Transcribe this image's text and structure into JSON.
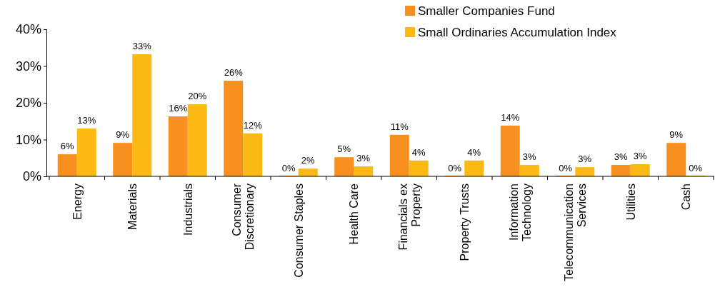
{
  "chart_data": {
    "type": "bar",
    "categories": [
      "Energy",
      "Materials",
      "Industrials",
      "Consumer Discretionary",
      "Consumer Staples",
      "Health Care",
      "Financials ex Property",
      "Property Trusts",
      "Information Technology",
      "Telecommunication Services",
      "Utilities",
      "Cash"
    ],
    "series": [
      {
        "name": "Smaller Companies Fund",
        "color": "#f7901e",
        "values": [
          6.0,
          9.1,
          16.3,
          26.0,
          0,
          5.2,
          11.3,
          0,
          13.8,
          0,
          3.1,
          9.1
        ],
        "value_labels": [
          "6%",
          "9%",
          "16%",
          "26%",
          "0%",
          "5%",
          "11%",
          "0%",
          "14%",
          "0%",
          "3%",
          "9%"
        ]
      },
      {
        "name": "Small Ordinaries Accumulation Index",
        "color": "#fdb913",
        "values": [
          13.0,
          33.2,
          19.6,
          11.7,
          2.1,
          2.7,
          4.3,
          4.3,
          3.1,
          2.5,
          3.3,
          0
        ],
        "value_labels": [
          "13%",
          "33%",
          "20%",
          "12%",
          "2%",
          "3%",
          "4%",
          "4%",
          "3%",
          "3%",
          "3%",
          "0%"
        ]
      }
    ],
    "ylim": [
      0,
      40
    ],
    "yticks": [
      {
        "value": 0,
        "label": "0%"
      },
      {
        "value": 10,
        "label": "10%"
      },
      {
        "value": 20,
        "label": "20%"
      },
      {
        "value": 30,
        "label": "30%"
      },
      {
        "value": 40,
        "label": "40%"
      }
    ],
    "grid": false,
    "legend": "top right"
  }
}
